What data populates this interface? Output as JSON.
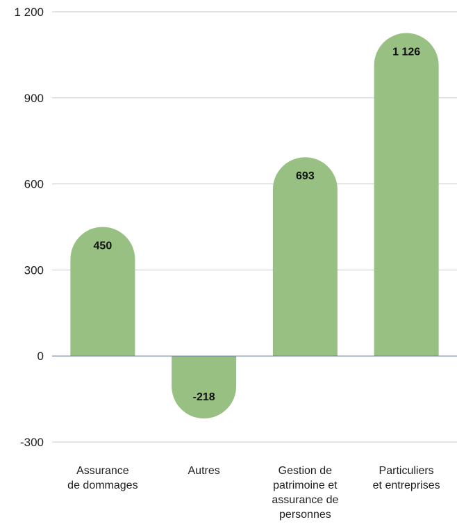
{
  "chart_data": {
    "type": "bar",
    "title": "",
    "xlabel": "",
    "ylabel": "",
    "categories": [
      [
        "Assurance",
        "de dommages"
      ],
      [
        "Autres"
      ],
      [
        "Gestion de",
        "patrimoine et",
        "assurance de",
        "personnes"
      ],
      [
        "Particuliers",
        "et entreprises"
      ]
    ],
    "values": [
      450,
      -218,
      693,
      1126
    ],
    "value_labels": [
      "450",
      "-218",
      "693",
      "1 126"
    ],
    "ylim": [
      -300,
      1200
    ],
    "yticks": [
      1200,
      900,
      600,
      300,
      0,
      -300
    ],
    "ytick_labels": [
      "1 200",
      "900",
      "600",
      "300",
      "0",
      "-300"
    ],
    "grid": true,
    "colors": {
      "bar": "#97c082",
      "grid": "#c9c9c9",
      "zero_line": "#6d7e9b"
    }
  }
}
